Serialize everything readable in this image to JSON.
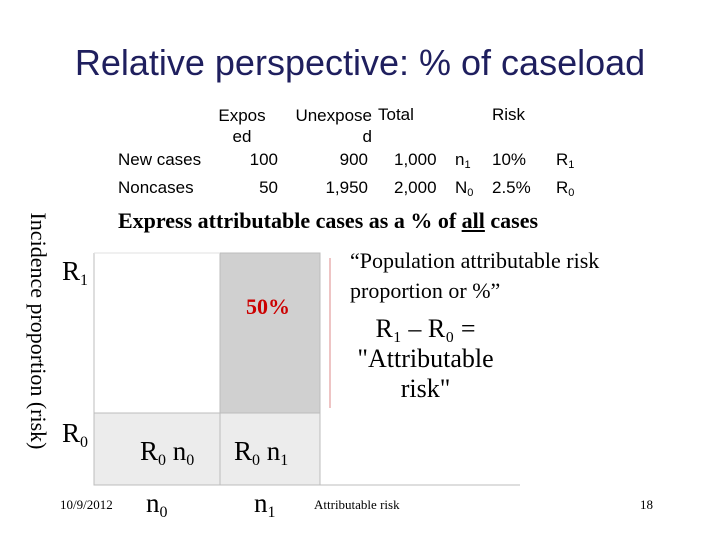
{
  "slide": {
    "title": "Relative perspective: % of caseload",
    "table": {
      "headers": {
        "exposed": "Exposed",
        "unexposed": "Unexposed",
        "total": "Total",
        "risk": "Risk"
      },
      "rows": [
        {
          "label": "New cases",
          "exposed": "100",
          "unexposed": "900",
          "total": "1,000",
          "symbol": "n",
          "symbol_sub": "1",
          "risk": "10%",
          "risk_symbol": "R",
          "risk_sub": "1"
        },
        {
          "label": "Noncases",
          "exposed": "50",
          "unexposed": "1,950",
          "total": "2,000",
          "symbol": "N",
          "symbol_sub": "0",
          "risk": "2.5%",
          "risk_symbol": "R",
          "risk_sub": "0"
        }
      ]
    },
    "y_axis_label": "Incidence proportion (risk)",
    "express_pre": "Express attributable cases as a % of ",
    "express_underline": "all",
    "express_post": " cases",
    "par_text": "“Population attributable risk proportion or %”",
    "equation_line1": "R₁ – R₀ =",
    "equation_line2": "\"Attributable",
    "equation_line3": "risk\"",
    "percent_label": "50%",
    "diagram": {
      "r1": {
        "main": "R",
        "sub": "1"
      },
      "r0": {
        "main": "R",
        "sub": "0"
      },
      "r0n0_a": "R",
      "r0n0_a_sub": "0",
      "r0n0_b": " n",
      "r0n0_b_sub": "0",
      "r0n1_a": "R",
      "r0n1_a_sub": "0",
      "r0n1_b": " n",
      "r0n1_b_sub": "1",
      "n0": {
        "main": "n",
        "sub": "0"
      },
      "n1": {
        "main": "n",
        "sub": "1"
      }
    },
    "footer": {
      "date": "10/9/2012",
      "middle": "Attributable risk",
      "page": "18"
    },
    "colors": {
      "title": "#1f1f5e",
      "percent": "#cc0000",
      "shade_dark": "#d0d0d0",
      "shade_light": "#ececec"
    }
  }
}
